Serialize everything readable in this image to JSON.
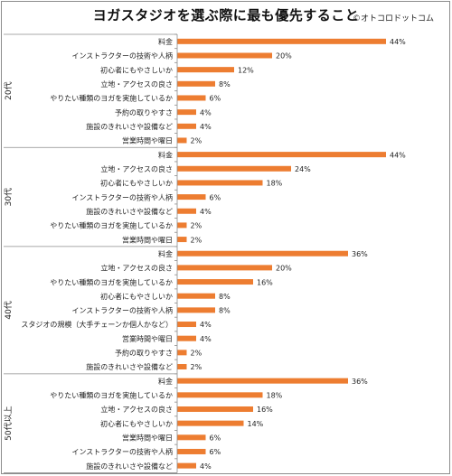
{
  "chart_data": {
    "type": "bar",
    "orientation": "horizontal",
    "title": "ヨガスタジオを選ぶ際に最も優先すること",
    "copyright": "©オトコロドットコム",
    "bar_color": "#ed7d31",
    "value_format": "percent",
    "xlim": [
      0,
      48
    ],
    "groups": [
      {
        "name": "20代",
        "categories": [
          "料金",
          "インストラクターの技術や人柄",
          "初心者にもやさしいか",
          "立地・アクセスの良さ",
          "やりたい種類のヨガを実施しているか",
          "予約の取りやすさ",
          "施設のきれいさや設備など",
          "営業時間や曜日"
        ],
        "values": [
          44,
          20,
          12,
          8,
          6,
          4,
          4,
          2
        ],
        "labels": [
          "44%",
          "20%",
          "12%",
          "8%",
          "6%",
          "4%",
          "4%",
          "2%"
        ]
      },
      {
        "name": "30代",
        "categories": [
          "料金",
          "立地・アクセスの良さ",
          "初心者にもやさしいか",
          "インストラクターの技術や人柄",
          "施設のきれいさや設備など",
          "やりたい種類のヨガを実施しているか",
          "営業時間や曜日"
        ],
        "values": [
          44,
          24,
          18,
          6,
          4,
          2,
          2
        ],
        "labels": [
          "44%",
          "24%",
          "18%",
          "6%",
          "4%",
          "2%",
          "2%"
        ]
      },
      {
        "name": "40代",
        "categories": [
          "料金",
          "立地・アクセスの良さ",
          "やりたい種類のヨガを実施しているか",
          "初心者にもやさしいか",
          "インストラクターの技術や人柄",
          "スタジオの規模（大手チェーンか個人かなど）",
          "営業時間や曜日",
          "予約の取りやすさ",
          "施設のきれいさや設備など"
        ],
        "values": [
          36,
          20,
          16,
          8,
          8,
          4,
          4,
          2,
          2
        ],
        "labels": [
          "36%",
          "20%",
          "16%",
          "8%",
          "8%",
          "4%",
          "4%",
          "2%",
          "2%"
        ]
      },
      {
        "name": "50代以上",
        "categories": [
          "料金",
          "やりたい種類のヨガを実施しているか",
          "立地・アクセスの良さ",
          "初心者にもやさしいか",
          "営業時間や曜日",
          "インストラクターの技術や人柄",
          "施設のきれいさや設備など"
        ],
        "values": [
          36,
          18,
          16,
          14,
          6,
          6,
          4
        ],
        "labels": [
          "36%",
          "18%",
          "16%",
          "14%",
          "6%",
          "6%",
          "4%"
        ]
      }
    ]
  }
}
